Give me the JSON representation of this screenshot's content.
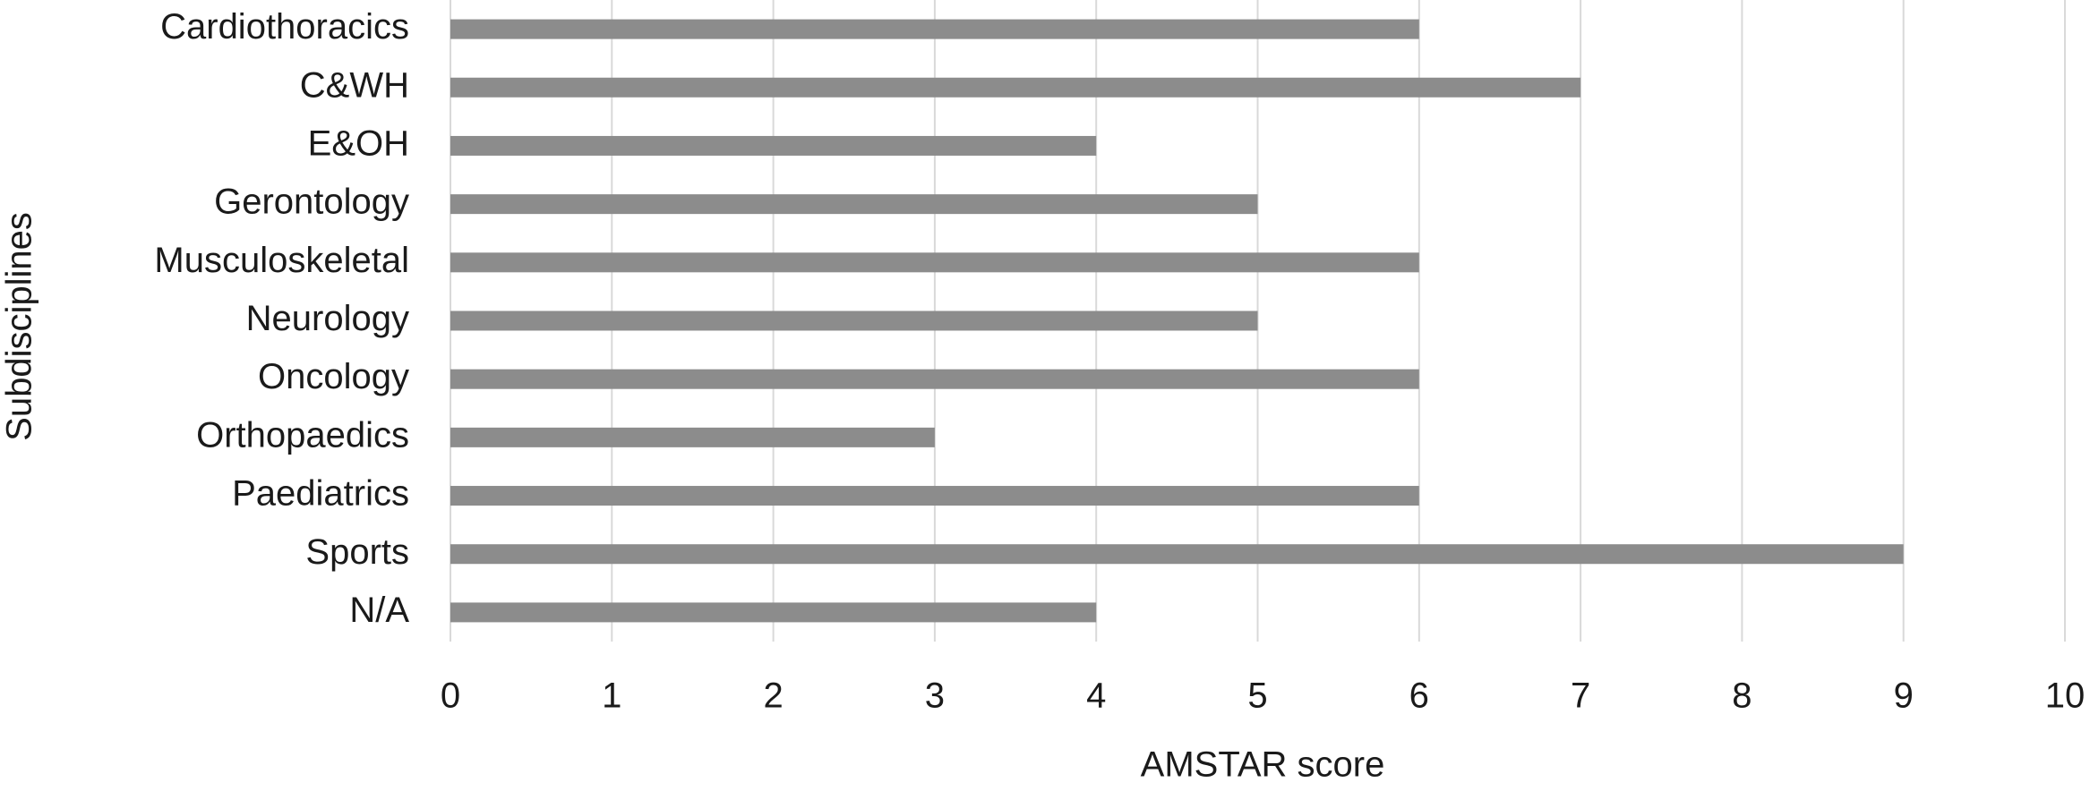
{
  "chart_data": {
    "type": "bar",
    "orientation": "horizontal",
    "x_label": "AMSTAR score",
    "y_label": "Subdisciplines",
    "categories": [
      "Cardiothoracics",
      "C&WH",
      "E&OH",
      "Gerontology",
      "Musculoskeletal",
      "Neurology",
      "Oncology",
      "Orthopaedics",
      "Paediatrics",
      "Sports",
      "N/A"
    ],
    "values": [
      6,
      7,
      4,
      5,
      6,
      5,
      6,
      3,
      6,
      9,
      4
    ],
    "color": "#8c8c8c",
    "xlim": [
      0,
      10
    ],
    "xticks": [
      0,
      1,
      2,
      3,
      4,
      5,
      6,
      7,
      8,
      9,
      10
    ],
    "grid": true
  }
}
